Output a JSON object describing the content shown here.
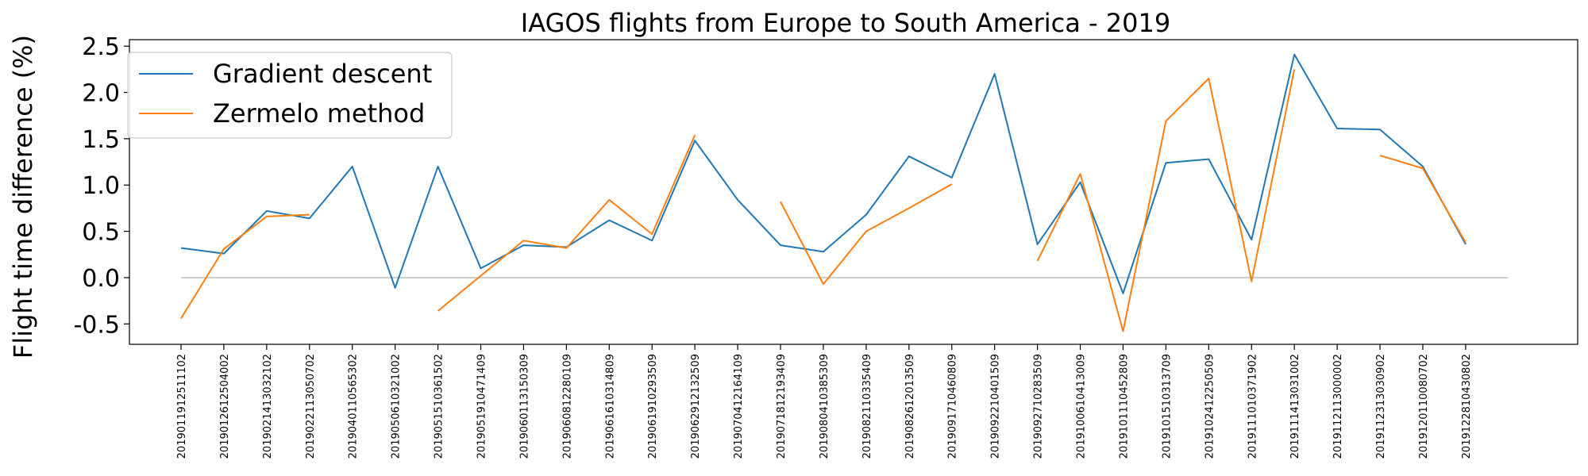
{
  "chart_data": {
    "type": "line",
    "title": "IAGOS flights from Europe to South America - 2019",
    "xlabel": "",
    "ylabel": "Flight time difference (%)",
    "ylim": [
      -0.72,
      2.57
    ],
    "yticks": [
      "-0.5",
      "0.0",
      "0.5",
      "1.0",
      "1.5",
      "2.0",
      "2.5"
    ],
    "ytick_values": [
      -0.5,
      0.0,
      0.5,
      1.0,
      1.5,
      2.0,
      2.5
    ],
    "grid": false,
    "legend_position": "top-left",
    "reference_line": {
      "y": 0.0,
      "color": "#bfbfbf"
    },
    "categories": [
      "2019011912511102",
      "2019012612504002",
      "2019021413032102",
      "2019022113050702",
      "2019040110565302",
      "2019050610321002",
      "2019051510361502",
      "2019051910471409",
      "2019060113150309",
      "2019060812280109",
      "2019061610314809",
      "2019061910293509",
      "2019062912132509",
      "2019070412164109",
      "2019071812193409",
      "2019080410385309",
      "2019082110335409",
      "2019082612013509",
      "2019091710460809",
      "2019092210401509",
      "2019092710283509",
      "2019100610413009",
      "2019101110452809",
      "2019101510313709",
      "2019102412250509",
      "2019111010371902",
      "2019111413031002",
      "2019112113000002",
      "2019112313030902",
      "2019120110080702",
      "2019122810430802"
    ],
    "series": [
      {
        "name": "Gradient descent",
        "color": "#1f77b4",
        "values": [
          0.32,
          0.26,
          0.72,
          0.64,
          1.2,
          -0.11,
          1.2,
          0.1,
          0.35,
          0.33,
          0.62,
          0.4,
          1.48,
          0.84,
          0.35,
          0.28,
          0.68,
          1.31,
          1.08,
          2.2,
          0.36,
          1.03,
          -0.17,
          1.24,
          1.28,
          0.41,
          2.41,
          1.61,
          1.6,
          1.2,
          0.36
        ]
      },
      {
        "name": "Zermelo method",
        "color": "#ff7f0e",
        "values": [
          -0.44,
          0.31,
          0.66,
          0.68,
          null,
          null,
          -0.36,
          0.02,
          0.4,
          0.32,
          0.84,
          0.47,
          1.54,
          null,
          0.82,
          -0.07,
          0.5,
          0.75,
          1.01,
          null,
          0.18,
          1.12,
          -0.58,
          1.69,
          2.15,
          -0.04,
          2.25,
          null,
          1.32,
          1.18,
          0.38
        ]
      }
    ]
  }
}
